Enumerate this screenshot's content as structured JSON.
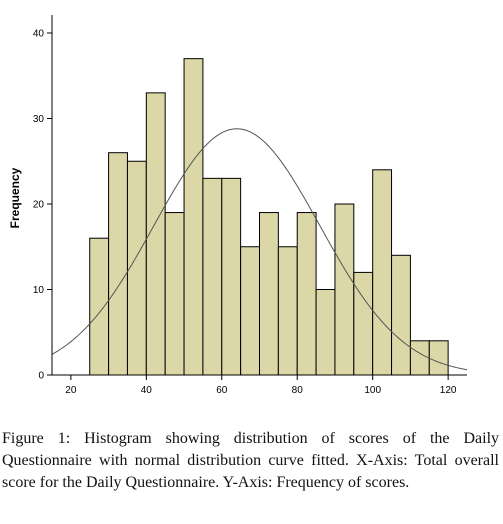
{
  "figure_caption": {
    "label": "Figure 1:",
    "text": "Histogram showing distribution of scores of the Daily Questionnaire with normal distribution curve fitted. X-Axis: Total overall score for the Daily Questionnaire. Y-Axis: Frequency of scores."
  },
  "colors": {
    "bar_fill": "#dcd7a6",
    "bar_stroke": "#000000",
    "curve": "#555555",
    "axis": "#000000",
    "background": "#ffffff"
  },
  "chart_data": {
    "type": "bar",
    "title": "",
    "xlabel": "",
    "ylabel": "Frequency",
    "xlim": [
      15,
      125
    ],
    "ylim": [
      0,
      40
    ],
    "xticks": [
      20,
      40,
      60,
      80,
      100,
      120
    ],
    "yticks": [
      0,
      10,
      20,
      30,
      40
    ],
    "grid": false,
    "bin_width": 5,
    "bins": [
      {
        "start": 25,
        "end": 30,
        "value": 16
      },
      {
        "start": 30,
        "end": 35,
        "value": 26
      },
      {
        "start": 35,
        "end": 40,
        "value": 25
      },
      {
        "start": 40,
        "end": 45,
        "value": 33
      },
      {
        "start": 45,
        "end": 50,
        "value": 19
      },
      {
        "start": 50,
        "end": 55,
        "value": 37
      },
      {
        "start": 55,
        "end": 60,
        "value": 23
      },
      {
        "start": 60,
        "end": 65,
        "value": 23
      },
      {
        "start": 65,
        "end": 70,
        "value": 15
      },
      {
        "start": 70,
        "end": 75,
        "value": 19
      },
      {
        "start": 75,
        "end": 80,
        "value": 15
      },
      {
        "start": 80,
        "end": 85,
        "value": 19
      },
      {
        "start": 85,
        "end": 90,
        "value": 10
      },
      {
        "start": 90,
        "end": 95,
        "value": 20
      },
      {
        "start": 95,
        "end": 100,
        "value": 12
      },
      {
        "start": 100,
        "end": 105,
        "value": 24
      },
      {
        "start": 105,
        "end": 110,
        "value": 14
      },
      {
        "start": 110,
        "end": 115,
        "value": 4
      },
      {
        "start": 115,
        "end": 120,
        "value": 4
      }
    ],
    "normal_curve": {
      "mean": 64,
      "sd": 22,
      "peak": 28.8
    }
  }
}
